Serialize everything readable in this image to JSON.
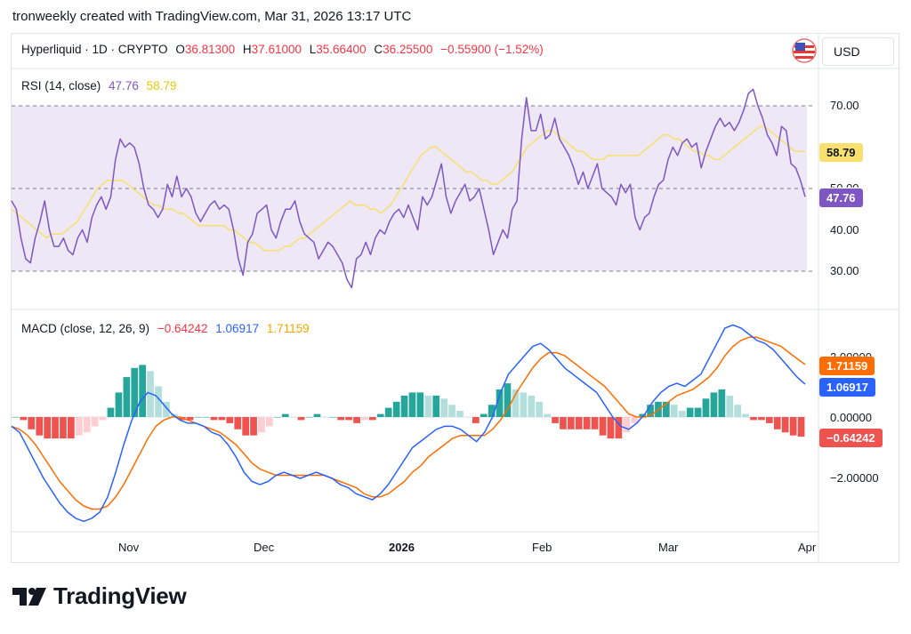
{
  "header": {
    "title": "tronweekly created with TradingView.com, Mar 31, 2026 13:17 UTC"
  },
  "symbol": {
    "name": "Hyperliquid · 1D · CRYPTO",
    "open_label": "O",
    "open": "36.81300",
    "high_label": "H",
    "high": "37.61000",
    "low_label": "L",
    "low": "35.66400",
    "close_label": "C",
    "close": "36.25500",
    "change": "−0.55900 (−1.52%)"
  },
  "currency": "USD",
  "rsi": {
    "label": "RSI (14, close)",
    "value": "47.76",
    "ma_value": "58.79",
    "ticks": [
      "70.00",
      "40.00",
      "30.00"
    ],
    "tick_50_partial": "50.00",
    "colors": {
      "rsi": "#7e57c2",
      "ma": "#f7e06d",
      "band": "#ede7f6"
    }
  },
  "macd": {
    "label": "MACD (close, 12, 26, 9)",
    "hist_value": "−0.64242",
    "macd_value": "1.06917",
    "signal_value": "1.71159",
    "ticks": [
      "2.00000",
      "0.00000",
      "−2.00000"
    ],
    "colors": {
      "macd": "#2962ff",
      "signal": "#ff6d00",
      "hist_pos": "#26a69a",
      "hist_pos_light": "#b2dfdb",
      "hist_neg": "#ef5350",
      "hist_neg_light": "#ffcdd2"
    }
  },
  "x_axis": {
    "labels": [
      "Nov",
      "Dec",
      "2026",
      "Feb",
      "Mar",
      "Apr"
    ]
  },
  "brand": {
    "name": "TradingView"
  },
  "chart_data": [
    {
      "type": "line",
      "title": "RSI (14, close)",
      "ylim": [
        25,
        80
      ],
      "reference_lines": [
        30,
        50,
        70
      ],
      "series": [
        {
          "name": "RSI",
          "values": [
            47,
            45,
            38,
            33,
            32,
            38,
            42,
            47,
            40,
            36,
            36,
            38,
            35,
            34,
            38,
            40,
            37,
            43,
            46,
            48,
            45,
            48,
            57,
            62,
            60,
            61,
            60,
            56,
            50,
            46,
            45,
            43,
            45,
            51,
            48,
            53,
            48,
            50,
            48,
            44,
            42,
            44,
            46,
            47,
            45,
            46,
            45,
            40,
            33,
            29,
            37,
            39,
            44,
            45,
            46,
            40,
            38,
            42,
            45,
            45,
            47,
            42,
            39,
            38,
            37,
            33,
            35,
            37,
            36,
            34,
            32,
            28,
            26,
            33,
            34,
            37,
            34,
            38,
            40,
            39,
            42,
            44,
            45,
            43,
            46,
            43,
            40,
            48,
            46,
            48,
            52,
            56,
            48,
            44,
            47,
            49,
            51,
            47,
            48,
            50,
            45,
            40,
            34,
            37,
            40,
            38,
            45,
            47,
            62,
            72,
            64,
            64,
            68,
            62,
            63,
            67,
            62,
            60,
            58,
            55,
            51,
            54,
            50,
            53,
            56,
            50,
            49,
            48,
            46,
            51,
            49,
            51,
            43,
            40,
            43,
            44,
            48,
            51,
            52,
            57,
            60,
            58,
            61,
            62,
            60,
            61,
            55,
            59,
            62,
            65,
            67,
            65,
            66,
            64,
            66,
            69,
            73,
            74,
            70,
            67,
            63,
            61,
            58,
            65,
            64,
            56,
            55,
            52,
            48
          ],
          "value_label": "47.76"
        },
        {
          "name": "RSI-based MA",
          "values": [
            45,
            44,
            43,
            42,
            41,
            40,
            39,
            38,
            39,
            39,
            39,
            40,
            41,
            42,
            44,
            46,
            48,
            50,
            51,
            52,
            52,
            52,
            52,
            51,
            50,
            49,
            48,
            47,
            46,
            46,
            45,
            45,
            45,
            44,
            44,
            43,
            42,
            41,
            41,
            41,
            41,
            41,
            41,
            40,
            40,
            39,
            38,
            37,
            37,
            36,
            35,
            35,
            35,
            35,
            36,
            36,
            37,
            38,
            38,
            39,
            40,
            41,
            42,
            43,
            44,
            45,
            46,
            47,
            46,
            46,
            46,
            45,
            45,
            44,
            45,
            46,
            48,
            50,
            52,
            54,
            56,
            58,
            59,
            60,
            60,
            59,
            58,
            57,
            56,
            55,
            54,
            54,
            53,
            52,
            52,
            51,
            51,
            52,
            53,
            54,
            56,
            58,
            60,
            61,
            62,
            63,
            64,
            64,
            63,
            62,
            61,
            60,
            59,
            59,
            58,
            57,
            57,
            57,
            58,
            58,
            58,
            58,
            58,
            58,
            58,
            59,
            60,
            61,
            62,
            63,
            63,
            62,
            62,
            61,
            60,
            59,
            59,
            58,
            58,
            57,
            57,
            58,
            59,
            60,
            61,
            62,
            63,
            64,
            65,
            65,
            64,
            63,
            62,
            61,
            60,
            59,
            59,
            59
          ],
          "value_label": "58.79"
        }
      ]
    },
    {
      "type": "line",
      "title": "MACD (close, 12, 26, 9)",
      "ylim": [
        -4,
        3
      ],
      "series": [
        {
          "name": "MACD",
          "values": [
            -0.3,
            -0.5,
            -1.0,
            -1.5,
            -2.0,
            -2.4,
            -2.8,
            -3.1,
            -3.3,
            -3.4,
            -3.3,
            -3.1,
            -2.6,
            -1.8,
            -0.9,
            -0.1,
            0.5,
            0.8,
            0.7,
            0.4,
            0.1,
            -0.1,
            -0.2,
            -0.2,
            -0.3,
            -0.5,
            -0.6,
            -0.9,
            -1.3,
            -1.8,
            -2.1,
            -2.2,
            -2.1,
            -1.9,
            -1.8,
            -1.9,
            -2.0,
            -1.9,
            -1.8,
            -1.9,
            -2.0,
            -2.2,
            -2.3,
            -2.5,
            -2.6,
            -2.7,
            -2.5,
            -2.2,
            -1.8,
            -1.4,
            -1.0,
            -0.8,
            -0.6,
            -0.4,
            -0.3,
            -0.3,
            -0.4,
            -0.6,
            -0.8,
            -0.5,
            0.0,
            0.8,
            1.4,
            1.7,
            2.0,
            2.3,
            2.4,
            2.2,
            1.9,
            1.6,
            1.4,
            1.2,
            1.0,
            0.8,
            0.4,
            0.0,
            -0.3,
            -0.4,
            -0.2,
            0.1,
            0.5,
            0.8,
            1.0,
            1.1,
            1.0,
            1.2,
            1.4,
            1.9,
            2.4,
            2.9,
            3.0,
            2.9,
            2.7,
            2.5,
            2.4,
            2.2,
            1.9,
            1.6,
            1.3,
            1.07
          ],
          "value_label": "1.06917"
        },
        {
          "name": "Signal",
          "values": [
            -0.3,
            -0.4,
            -0.6,
            -0.9,
            -1.3,
            -1.7,
            -2.1,
            -2.4,
            -2.7,
            -2.9,
            -3.0,
            -3.0,
            -2.9,
            -2.6,
            -2.2,
            -1.7,
            -1.2,
            -0.7,
            -0.3,
            -0.1,
            0.0,
            0.0,
            -0.1,
            -0.2,
            -0.3,
            -0.4,
            -0.5,
            -0.7,
            -0.9,
            -1.2,
            -1.5,
            -1.7,
            -1.8,
            -1.9,
            -1.9,
            -1.9,
            -1.9,
            -1.9,
            -1.9,
            -1.9,
            -2.0,
            -2.1,
            -2.2,
            -2.3,
            -2.5,
            -2.6,
            -2.6,
            -2.5,
            -2.3,
            -2.1,
            -1.8,
            -1.6,
            -1.3,
            -1.1,
            -0.9,
            -0.7,
            -0.6,
            -0.6,
            -0.6,
            -0.6,
            -0.4,
            -0.1,
            0.3,
            0.8,
            1.2,
            1.6,
            1.9,
            2.1,
            2.1,
            2.0,
            1.8,
            1.6,
            1.4,
            1.2,
            1.0,
            0.7,
            0.4,
            0.1,
            0.0,
            0.0,
            0.1,
            0.3,
            0.5,
            0.7,
            0.8,
            0.9,
            1.1,
            1.3,
            1.6,
            2.0,
            2.3,
            2.5,
            2.6,
            2.6,
            2.5,
            2.4,
            2.3,
            2.1,
            1.9,
            1.71
          ],
          "value_label": "1.71159"
        },
        {
          "name": "Histogram",
          "values": [
            0.0,
            -0.1,
            -0.4,
            -0.6,
            -0.7,
            -0.7,
            -0.7,
            -0.7,
            -0.6,
            -0.5,
            -0.3,
            -0.1,
            0.3,
            0.8,
            1.3,
            1.6,
            1.7,
            1.5,
            1.0,
            0.5,
            0.1,
            -0.1,
            -0.1,
            0.0,
            0.0,
            -0.1,
            -0.1,
            -0.2,
            -0.4,
            -0.6,
            -0.6,
            -0.5,
            -0.3,
            0.0,
            0.1,
            0.0,
            -0.1,
            0.0,
            0.1,
            0.0,
            0.0,
            -0.1,
            -0.1,
            -0.2,
            -0.1,
            -0.1,
            0.1,
            0.3,
            0.5,
            0.7,
            0.8,
            0.8,
            0.7,
            0.7,
            0.6,
            0.4,
            0.2,
            0.0,
            -0.2,
            0.1,
            0.4,
            0.9,
            1.1,
            0.9,
            0.8,
            0.7,
            0.5,
            0.1,
            -0.2,
            -0.4,
            -0.4,
            -0.4,
            -0.4,
            -0.4,
            -0.6,
            -0.7,
            -0.7,
            -0.5,
            -0.2,
            0.1,
            0.4,
            0.5,
            0.5,
            0.4,
            0.2,
            0.3,
            0.3,
            0.6,
            0.8,
            0.9,
            0.7,
            0.4,
            0.1,
            -0.1,
            -0.1,
            -0.2,
            -0.4,
            -0.5,
            -0.6,
            -0.64
          ],
          "value_label": "−0.64242"
        }
      ]
    }
  ]
}
